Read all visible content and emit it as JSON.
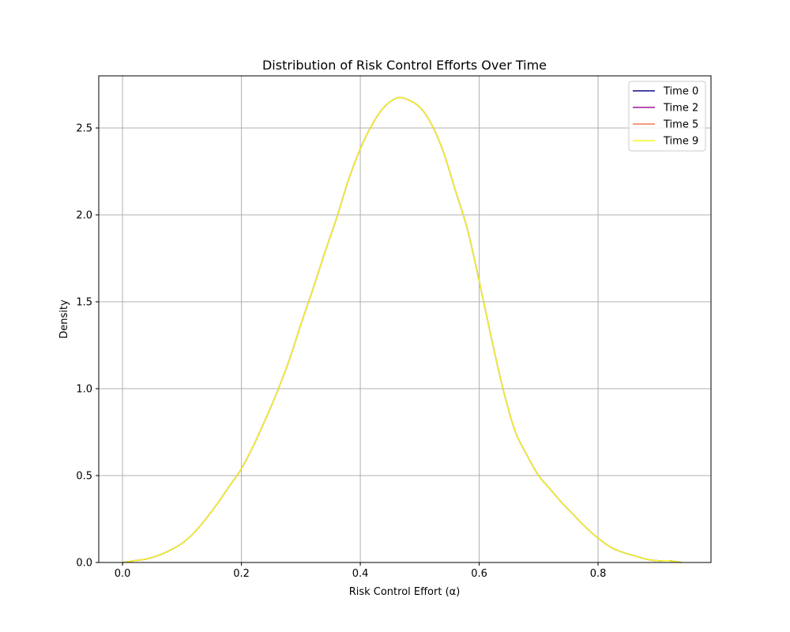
{
  "chart_data": {
    "type": "line",
    "title": "Distribution of Risk Control Efforts Over Time",
    "xlabel": "Risk Control Effort (α)",
    "ylabel": "Density",
    "xlim": [
      -0.04,
      0.99
    ],
    "ylim": [
      0,
      2.8
    ],
    "xticks": [
      0.0,
      0.2,
      0.4,
      0.6,
      0.8
    ],
    "xtick_labels": [
      "0.0",
      "0.2",
      "0.4",
      "0.6",
      "0.8"
    ],
    "yticks": [
      0.0,
      0.5,
      1.0,
      1.5,
      2.0,
      2.5
    ],
    "ytick_labels": [
      "0.0",
      "0.5",
      "1.0",
      "1.5",
      "2.0",
      "2.5"
    ],
    "grid": true,
    "legend_position": "top-right",
    "x": [
      0.0,
      0.02,
      0.04,
      0.06,
      0.08,
      0.1,
      0.12,
      0.14,
      0.16,
      0.18,
      0.2,
      0.22,
      0.24,
      0.26,
      0.28,
      0.3,
      0.32,
      0.34,
      0.36,
      0.38,
      0.4,
      0.42,
      0.44,
      0.46,
      0.475,
      0.5,
      0.52,
      0.54,
      0.56,
      0.58,
      0.6,
      0.62,
      0.64,
      0.66,
      0.68,
      0.7,
      0.72,
      0.74,
      0.76,
      0.78,
      0.8,
      0.82,
      0.84,
      0.86,
      0.88,
      0.9,
      0.92,
      0.94
    ],
    "series": [
      {
        "name": "Time 0",
        "color": "#0d0887",
        "y": [
          0.0,
          0.01,
          0.02,
          0.04,
          0.07,
          0.11,
          0.17,
          0.25,
          0.34,
          0.44,
          0.54,
          0.67,
          0.82,
          0.98,
          1.16,
          1.37,
          1.57,
          1.78,
          1.98,
          2.2,
          2.38,
          2.52,
          2.62,
          2.67,
          2.67,
          2.62,
          2.52,
          2.36,
          2.14,
          1.92,
          1.62,
          1.3,
          1.0,
          0.76,
          0.62,
          0.5,
          0.42,
          0.34,
          0.27,
          0.2,
          0.14,
          0.09,
          0.06,
          0.04,
          0.02,
          0.01,
          0.01,
          0.0
        ]
      },
      {
        "name": "Time 2",
        "color": "#9c179e",
        "y": [
          0.0,
          0.01,
          0.02,
          0.04,
          0.07,
          0.11,
          0.17,
          0.25,
          0.34,
          0.44,
          0.54,
          0.67,
          0.82,
          0.98,
          1.16,
          1.37,
          1.57,
          1.78,
          1.98,
          2.2,
          2.38,
          2.52,
          2.62,
          2.67,
          2.67,
          2.62,
          2.52,
          2.36,
          2.14,
          1.92,
          1.62,
          1.3,
          1.0,
          0.76,
          0.62,
          0.5,
          0.42,
          0.34,
          0.27,
          0.2,
          0.14,
          0.09,
          0.06,
          0.04,
          0.02,
          0.01,
          0.01,
          0.0
        ]
      },
      {
        "name": "Time 5",
        "color": "#ed7953",
        "y": [
          0.0,
          0.01,
          0.02,
          0.04,
          0.07,
          0.11,
          0.17,
          0.25,
          0.34,
          0.44,
          0.54,
          0.67,
          0.82,
          0.98,
          1.16,
          1.37,
          1.57,
          1.78,
          1.98,
          2.2,
          2.38,
          2.52,
          2.62,
          2.67,
          2.67,
          2.62,
          2.52,
          2.36,
          2.14,
          1.92,
          1.62,
          1.3,
          1.0,
          0.76,
          0.62,
          0.5,
          0.42,
          0.34,
          0.27,
          0.2,
          0.14,
          0.09,
          0.06,
          0.04,
          0.02,
          0.01,
          0.01,
          0.0
        ]
      },
      {
        "name": "Time 9",
        "color": "#f0f921",
        "y": [
          0.0,
          0.01,
          0.02,
          0.04,
          0.07,
          0.11,
          0.17,
          0.25,
          0.34,
          0.44,
          0.54,
          0.67,
          0.82,
          0.98,
          1.16,
          1.37,
          1.57,
          1.78,
          1.98,
          2.2,
          2.38,
          2.52,
          2.62,
          2.67,
          2.67,
          2.62,
          2.52,
          2.36,
          2.14,
          1.92,
          1.62,
          1.3,
          1.0,
          0.76,
          0.62,
          0.5,
          0.42,
          0.34,
          0.27,
          0.2,
          0.14,
          0.09,
          0.06,
          0.04,
          0.02,
          0.01,
          0.01,
          0.0
        ]
      }
    ]
  }
}
